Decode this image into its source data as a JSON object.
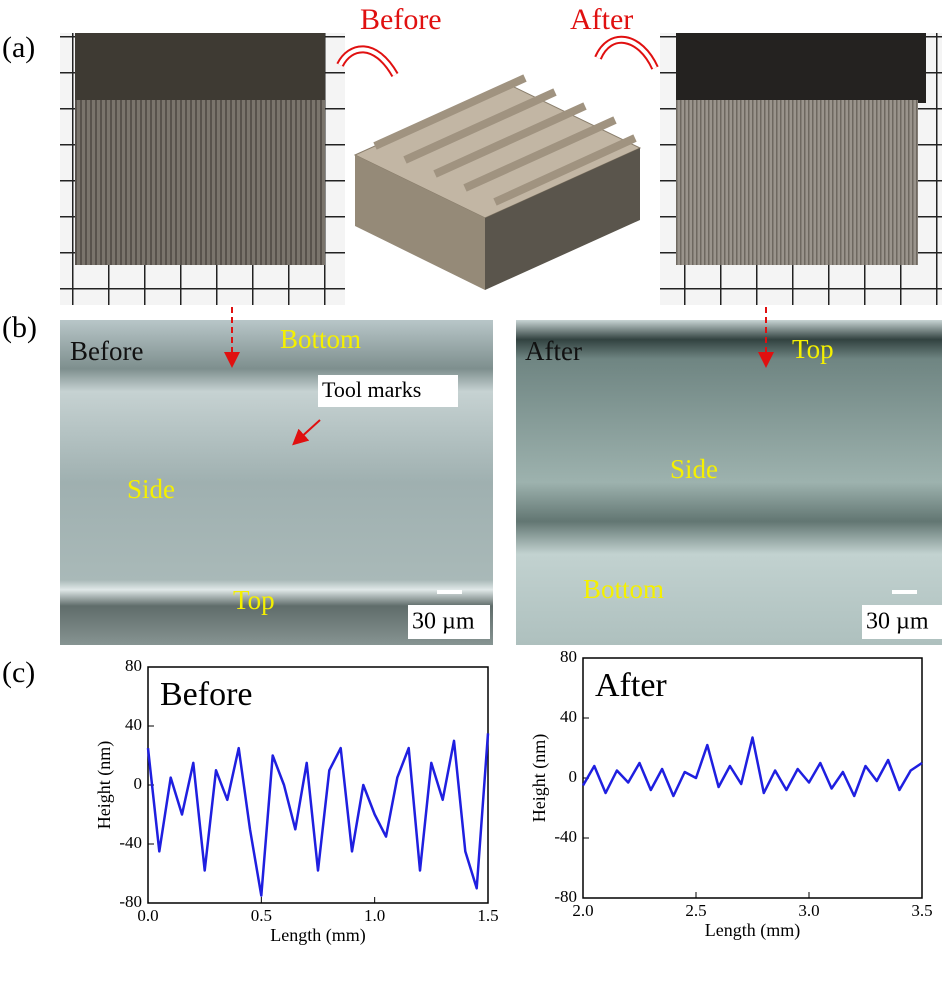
{
  "panel_a": {
    "label": "(a)",
    "before": "Before",
    "after": "After"
  },
  "panel_b": {
    "label": "(b)",
    "left": {
      "title": "Before",
      "bottom": "Bottom",
      "annotation": "Tool marks",
      "side": "Side",
      "top": "Top",
      "scale": "30 µm"
    },
    "right": {
      "title": "After",
      "top": "Top",
      "side": "Side",
      "bottom": "Bottom",
      "scale": "30 µm"
    }
  },
  "panel_c": {
    "label": "(c)"
  },
  "chart_data": [
    {
      "type": "line",
      "title": "Before",
      "xlabel": "Length (mm)",
      "ylabel": "Height (nm)",
      "color": "#1f1fe0",
      "x": [
        0,
        0.05,
        0.1,
        0.15,
        0.2,
        0.25,
        0.3,
        0.35,
        0.4,
        0.45,
        0.5,
        0.55,
        0.6,
        0.65,
        0.7,
        0.75,
        0.8,
        0.85,
        0.9,
        0.95,
        1.0,
        1.05,
        1.1,
        1.15,
        1.2,
        1.25,
        1.3,
        1.35,
        1.4,
        1.45,
        1.5
      ],
      "values": [
        25,
        -45,
        5,
        -20,
        15,
        -58,
        10,
        -10,
        25,
        -30,
        -75,
        20,
        0,
        -30,
        15,
        -58,
        10,
        25,
        -45,
        0,
        -20,
        -35,
        5,
        25,
        -58,
        15,
        -10,
        30,
        -45,
        -70,
        35
      ],
      "xlim": [
        0,
        1.5
      ],
      "xticks": [
        {
          "value": 0,
          "label": "0.0"
        },
        0.5,
        {
          "value": 1,
          "label": "1.0"
        },
        1.5
      ],
      "ylim": [
        -80,
        80
      ],
      "yticks": [
        -80,
        -40,
        0,
        40,
        80
      ]
    },
    {
      "type": "line",
      "title": "After",
      "xlabel": "Length (mm)",
      "ylabel": "Height (nm)",
      "color": "#1f1fe0",
      "x": [
        2.0,
        2.05,
        2.1,
        2.15,
        2.2,
        2.25,
        2.3,
        2.35,
        2.4,
        2.45,
        2.5,
        2.55,
        2.6,
        2.65,
        2.7,
        2.75,
        2.8,
        2.85,
        2.9,
        2.95,
        3.0,
        3.05,
        3.1,
        3.15,
        3.2,
        3.25,
        3.3,
        3.35,
        3.4,
        3.45,
        3.5
      ],
      "values": [
        -5,
        8,
        -10,
        5,
        -3,
        10,
        -8,
        6,
        -12,
        4,
        0,
        22,
        -6,
        8,
        -4,
        27,
        -10,
        5,
        -8,
        6,
        -3,
        10,
        -7,
        4,
        -12,
        8,
        -2,
        12,
        -8,
        5,
        10
      ],
      "xlim": [
        2.0,
        3.5
      ],
      "xticks": [
        {
          "value": 2,
          "label": "2.0"
        },
        2.5,
        {
          "value": 3,
          "label": "3.0"
        },
        3.5
      ],
      "ylim": [
        -80,
        80
      ],
      "yticks": [
        -80,
        -40,
        0,
        40,
        80
      ]
    }
  ]
}
